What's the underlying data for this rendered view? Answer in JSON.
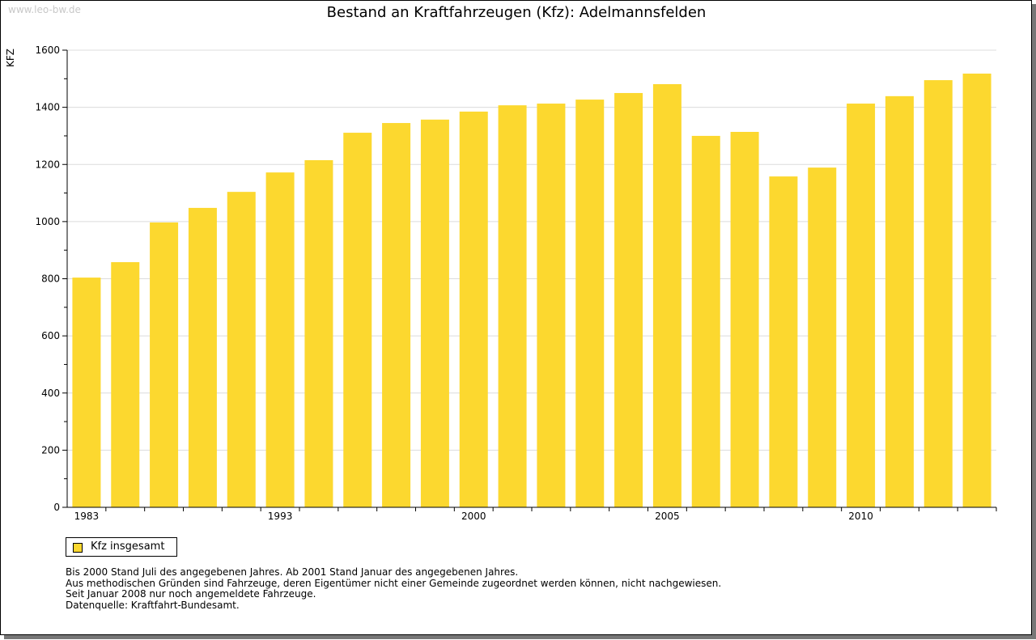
{
  "watermark": "www.leo-bw.de",
  "chart_data": {
    "type": "bar",
    "title": "Bestand an Kraftfahrzeugen (Kfz): Adelmannsfelden",
    "ylabel": "KFZ",
    "xlabel": "",
    "ylim": [
      0,
      1600
    ],
    "yticks": [
      0,
      200,
      400,
      600,
      800,
      1000,
      1200,
      1400,
      1600
    ],
    "grid": true,
    "categories": [
      "1983",
      "",
      "",
      "",
      "",
      "1993",
      "",
      "",
      "",
      "",
      "2000",
      "",
      "",
      "",
      "",
      "2005",
      "",
      "",
      "",
      "",
      "2010",
      "",
      "",
      ""
    ],
    "series": [
      {
        "name": "Kfz insgesamt",
        "color": "#fcd82f",
        "values": [
          804,
          858,
          997,
          1048,
          1104,
          1172,
          1215,
          1311,
          1345,
          1357,
          1385,
          1407,
          1413,
          1427,
          1450,
          1481,
          1300,
          1314,
          1158,
          1189,
          1413,
          1439,
          1495,
          1518
        ]
      }
    ],
    "legend": "bottom-left"
  },
  "notes": [
    "Bis 2000 Stand Juli des angegebenen Jahres. Ab 2001 Stand Januar des angegebenen Jahres.",
    "Aus methodischen Gründen sind Fahrzeuge, deren Eigentümer nicht einer Gemeinde zugeordnet werden können, nicht nachgewiesen.",
    "Seit Januar 2008 nur noch angemeldete Fahrzeuge.",
    "",
    "Datenquelle: Kraftfahrt-Bundesamt."
  ]
}
